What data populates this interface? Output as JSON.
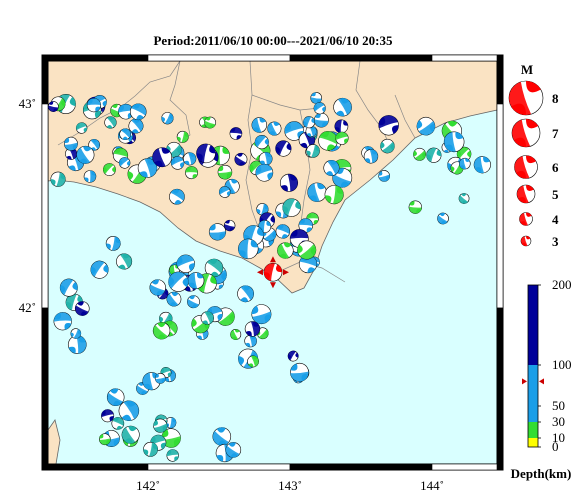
{
  "title": "Period:2011/06/10 00:00---2021/06/10 20:35",
  "map": {
    "lon_ticks": [
      {
        "value": 142,
        "label": "142˚"
      },
      {
        "value": 143,
        "label": "143˚"
      },
      {
        "value": 144,
        "label": "144˚"
      }
    ],
    "lat_ticks": [
      {
        "value": 42,
        "label": "42˚"
      },
      {
        "value": 43,
        "label": "43˚"
      }
    ],
    "extent": {
      "lon": [
        141.4,
        144.4
      ],
      "lat": [
        41.2,
        43.2
      ]
    },
    "colors": {
      "land": "#fae3c3",
      "sea": "#d9ffff"
    },
    "main_event": {
      "lon": 142.88,
      "lat": 42.2,
      "color": "#ff0000"
    }
  },
  "magnitude_legend": {
    "title": "M",
    "items": [
      {
        "m": 8,
        "label": "8"
      },
      {
        "m": 7,
        "label": "7"
      },
      {
        "m": 6,
        "label": "6"
      },
      {
        "m": 5,
        "label": "5"
      },
      {
        "m": 4,
        "label": "4"
      },
      {
        "m": 3,
        "label": "3"
      }
    ]
  },
  "depth_legend": {
    "title": "Depth(km)",
    "ticks": [
      {
        "value": 0,
        "label": "0"
      },
      {
        "value": 10,
        "label": "10"
      },
      {
        "value": 30,
        "label": "30"
      },
      {
        "value": 50,
        "label": "50"
      },
      {
        "value": 100,
        "label": "100"
      },
      {
        "value": 200,
        "label": "200"
      }
    ],
    "bands": [
      {
        "from": 0,
        "to": 10,
        "color": "#ffff00"
      },
      {
        "from": 10,
        "to": 30,
        "color": "#33dd33"
      },
      {
        "from": 30,
        "to": 100,
        "color": "#1a9ee8"
      },
      {
        "from": 100,
        "to": 200,
        "color": "#000099"
      }
    ],
    "marker_depth": 80
  }
}
